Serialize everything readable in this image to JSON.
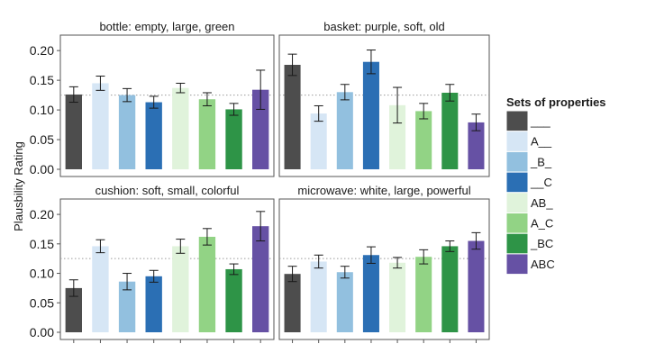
{
  "chart_data": {
    "type": "bar",
    "ylabel": "Plausbility Rating",
    "ylim": [
      0,
      0.22
    ],
    "yticks": [
      "0.00",
      "0.05",
      "0.10",
      "0.15",
      "0.20"
    ],
    "reference_line": 0.125,
    "legend": {
      "title": "Sets of properties",
      "placement": "right",
      "entries": [
        "___",
        "A__",
        "_B_",
        "__C",
        "AB_",
        "A_C",
        "_BC",
        "ABC"
      ],
      "colors": [
        "#4d4d4d",
        "#d6e6f5",
        "#92c0df",
        "#2b6fb4",
        "#e0f3db",
        "#92d385",
        "#2e9447",
        "#6651a4"
      ]
    },
    "panels": [
      {
        "title": "bottle: empty, large, green",
        "values": [
          0.126,
          0.145,
          0.125,
          0.113,
          0.137,
          0.118,
          0.101,
          0.134
        ],
        "errors": [
          0.013,
          0.012,
          0.011,
          0.01,
          0.008,
          0.011,
          0.01,
          0.033
        ]
      },
      {
        "title": "basket: purple, soft, old",
        "values": [
          0.176,
          0.094,
          0.13,
          0.181,
          0.108,
          0.098,
          0.129,
          0.079
        ],
        "errors": [
          0.018,
          0.013,
          0.013,
          0.02,
          0.03,
          0.013,
          0.014,
          0.014
        ]
      },
      {
        "title": "cushion: soft, small, colorful",
        "values": [
          0.075,
          0.146,
          0.086,
          0.095,
          0.146,
          0.162,
          0.107,
          0.18
        ],
        "errors": [
          0.014,
          0.011,
          0.014,
          0.01,
          0.012,
          0.014,
          0.009,
          0.025
        ]
      },
      {
        "title": "microwave: white, large, powerful",
        "values": [
          0.099,
          0.12,
          0.102,
          0.131,
          0.118,
          0.128,
          0.146,
          0.155
        ],
        "errors": [
          0.013,
          0.011,
          0.01,
          0.014,
          0.009,
          0.012,
          0.009,
          0.014
        ]
      }
    ]
  }
}
